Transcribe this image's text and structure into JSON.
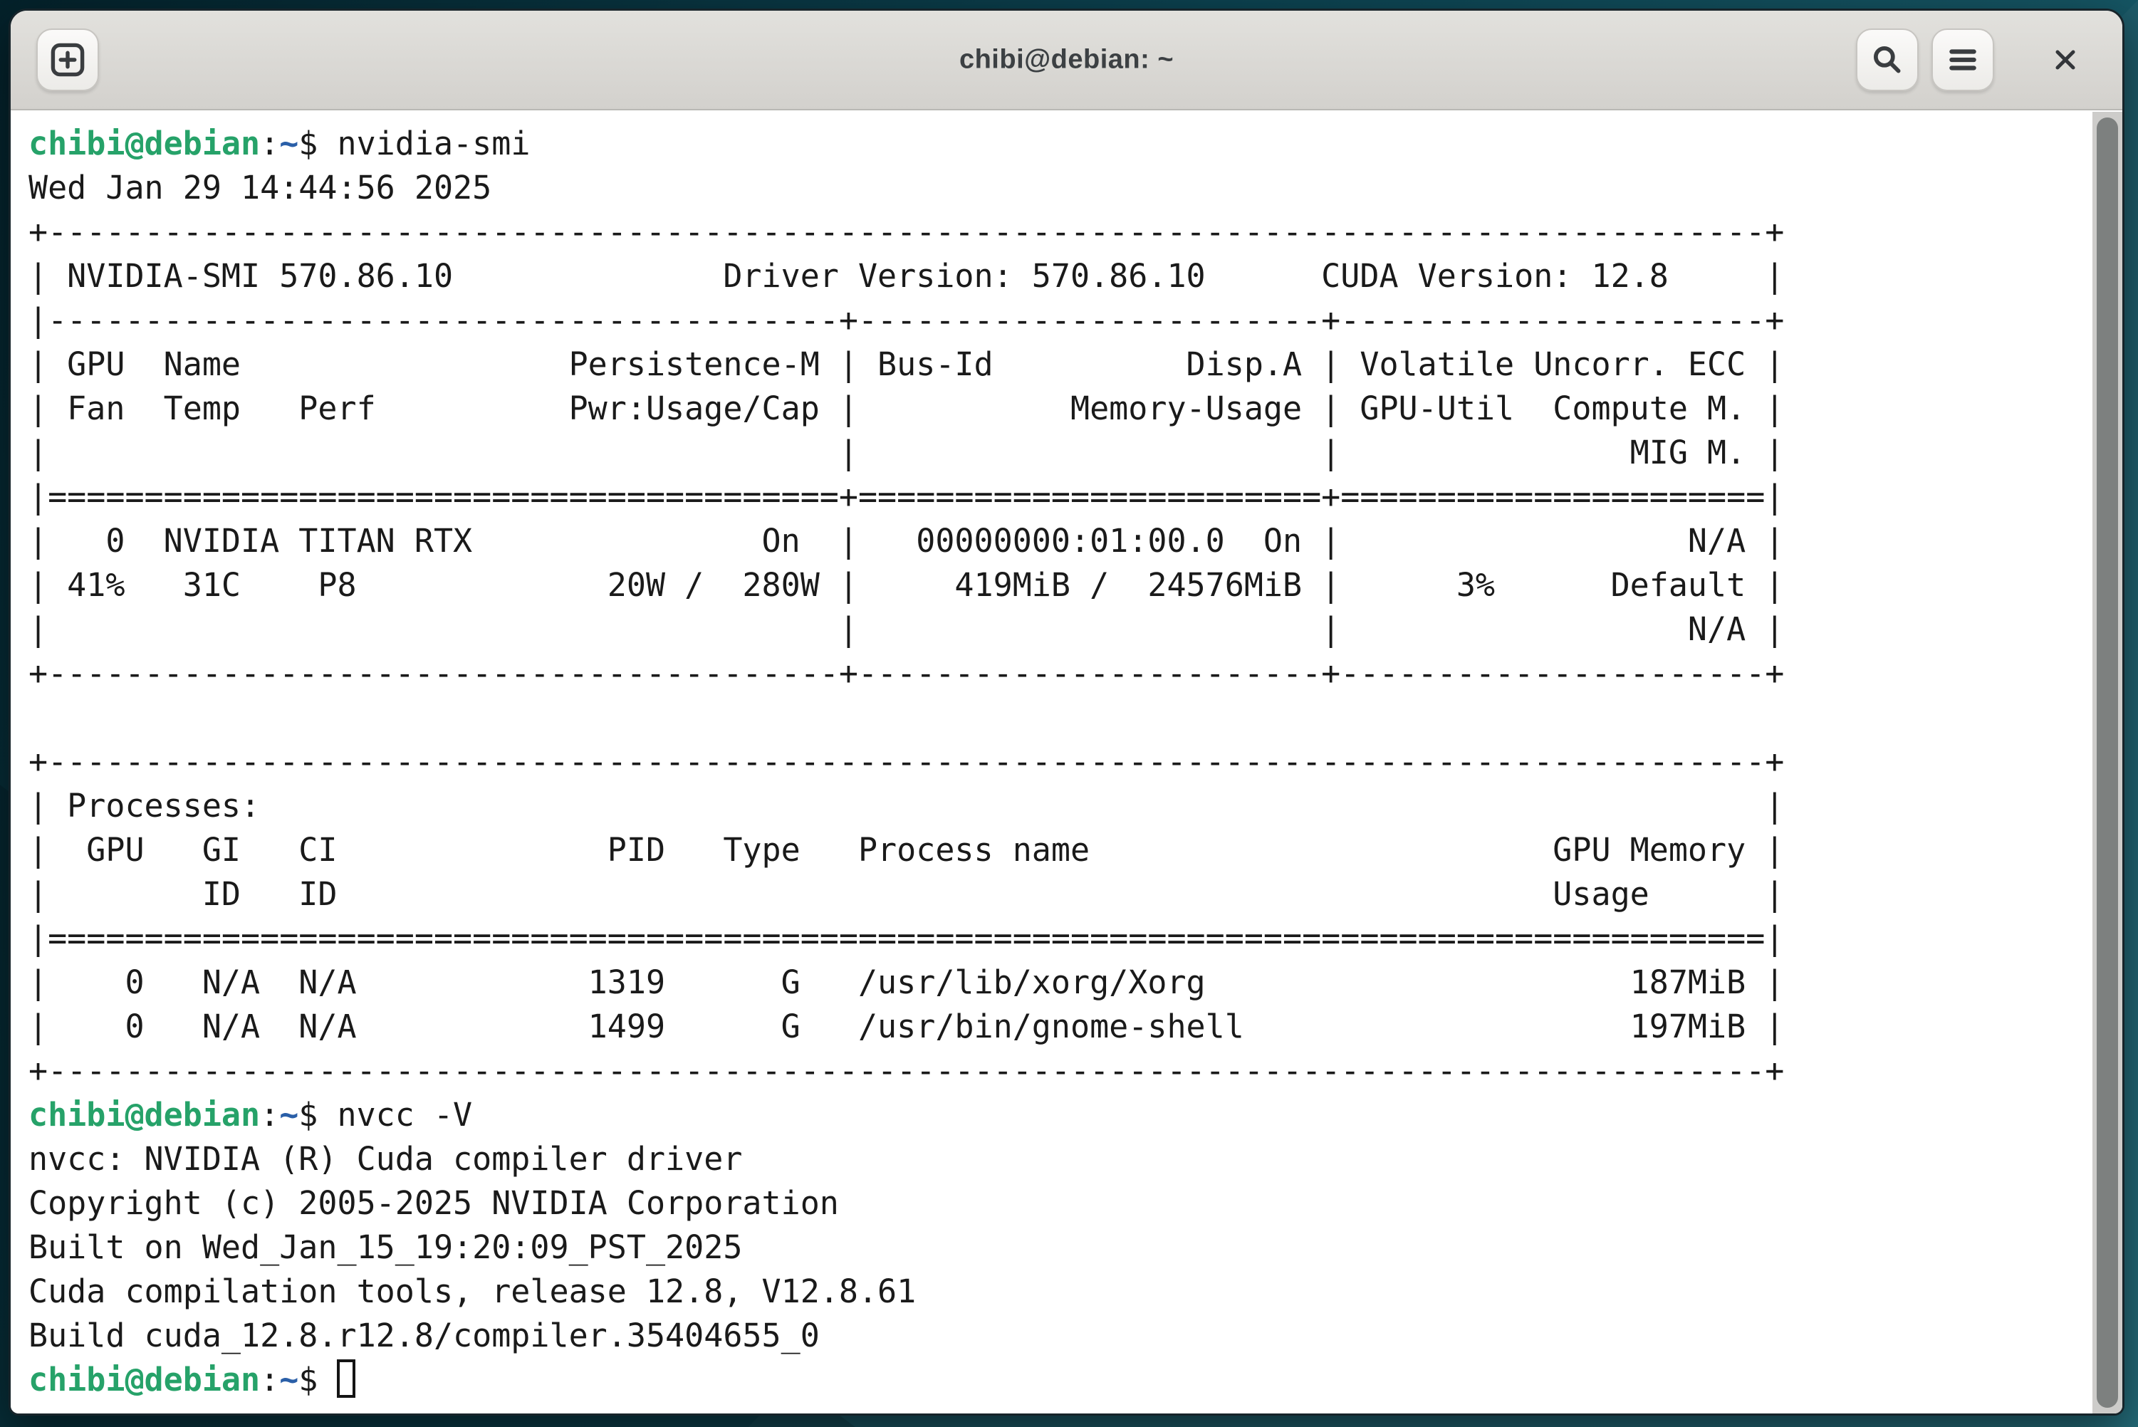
{
  "window": {
    "title": "chibi@debian: ~",
    "controls": {
      "new_tab_label": "New Tab",
      "search_label": "Search",
      "menu_label": "Menu",
      "close_label": "Close"
    }
  },
  "colors": {
    "prompt_user_green": "#26a269",
    "prompt_path_blue": "#2a5fa8",
    "terminal_fg": "#1a1a1a",
    "terminal_bg": "#ffffff",
    "titlebar_bg": "#d9d7d3",
    "desktop_teal_dark": "#04222b",
    "desktop_teal_light": "#1c6776"
  },
  "terminal": {
    "prompt": {
      "user": "chibi@debian",
      "separator": ":",
      "path": "~",
      "symbol": "$"
    },
    "lines": [
      {
        "kind": "command",
        "command": "nvidia-smi"
      },
      {
        "kind": "output",
        "text": "Wed Jan 29 14:44:56 2025"
      },
      {
        "kind": "output",
        "text": "+-----------------------------------------------------------------------------------------+"
      },
      {
        "kind": "output",
        "text": "| NVIDIA-SMI 570.86.10              Driver Version: 570.86.10      CUDA Version: 12.8     |"
      },
      {
        "kind": "output",
        "text": "|-----------------------------------------+------------------------+----------------------+"
      },
      {
        "kind": "output",
        "text": "| GPU  Name                 Persistence-M | Bus-Id          Disp.A | Volatile Uncorr. ECC |"
      },
      {
        "kind": "output",
        "text": "| Fan  Temp   Perf          Pwr:Usage/Cap |           Memory-Usage | GPU-Util  Compute M. |"
      },
      {
        "kind": "output",
        "text": "|                                         |                        |               MIG M. |"
      },
      {
        "kind": "output",
        "text": "|=========================================+========================+======================|"
      },
      {
        "kind": "output",
        "text": "|   0  NVIDIA TITAN RTX               On  |   00000000:01:00.0  On |                  N/A |"
      },
      {
        "kind": "output",
        "text": "| 41%   31C    P8             20W /  280W |     419MiB /  24576MiB |      3%      Default |"
      },
      {
        "kind": "output",
        "text": "|                                         |                        |                  N/A |"
      },
      {
        "kind": "output",
        "text": "+-----------------------------------------+------------------------+----------------------+"
      },
      {
        "kind": "output",
        "text": ""
      },
      {
        "kind": "output",
        "text": "+-----------------------------------------------------------------------------------------+"
      },
      {
        "kind": "output",
        "text": "| Processes:                                                                              |"
      },
      {
        "kind": "output",
        "text": "|  GPU   GI   CI              PID   Type   Process name                        GPU Memory |"
      },
      {
        "kind": "output",
        "text": "|        ID   ID                                                               Usage      |"
      },
      {
        "kind": "output",
        "text": "|=========================================================================================|"
      },
      {
        "kind": "output",
        "text": "|    0   N/A  N/A            1319      G   /usr/lib/xorg/Xorg                      187MiB |"
      },
      {
        "kind": "output",
        "text": "|    0   N/A  N/A            1499      G   /usr/bin/gnome-shell                    197MiB |"
      },
      {
        "kind": "output",
        "text": "+-----------------------------------------------------------------------------------------+"
      },
      {
        "kind": "command",
        "command": "nvcc -V"
      },
      {
        "kind": "output",
        "text": "nvcc: NVIDIA (R) Cuda compiler driver"
      },
      {
        "kind": "output",
        "text": "Copyright (c) 2005-2025 NVIDIA Corporation"
      },
      {
        "kind": "output",
        "text": "Built on Wed_Jan_15_19:20:09_PST_2025"
      },
      {
        "kind": "output",
        "text": "Cuda compilation tools, release 12.8, V12.8.61"
      },
      {
        "kind": "output",
        "text": "Build cuda_12.8.r12.8/compiler.35404655_0"
      },
      {
        "kind": "prompt_cursor"
      }
    ]
  }
}
